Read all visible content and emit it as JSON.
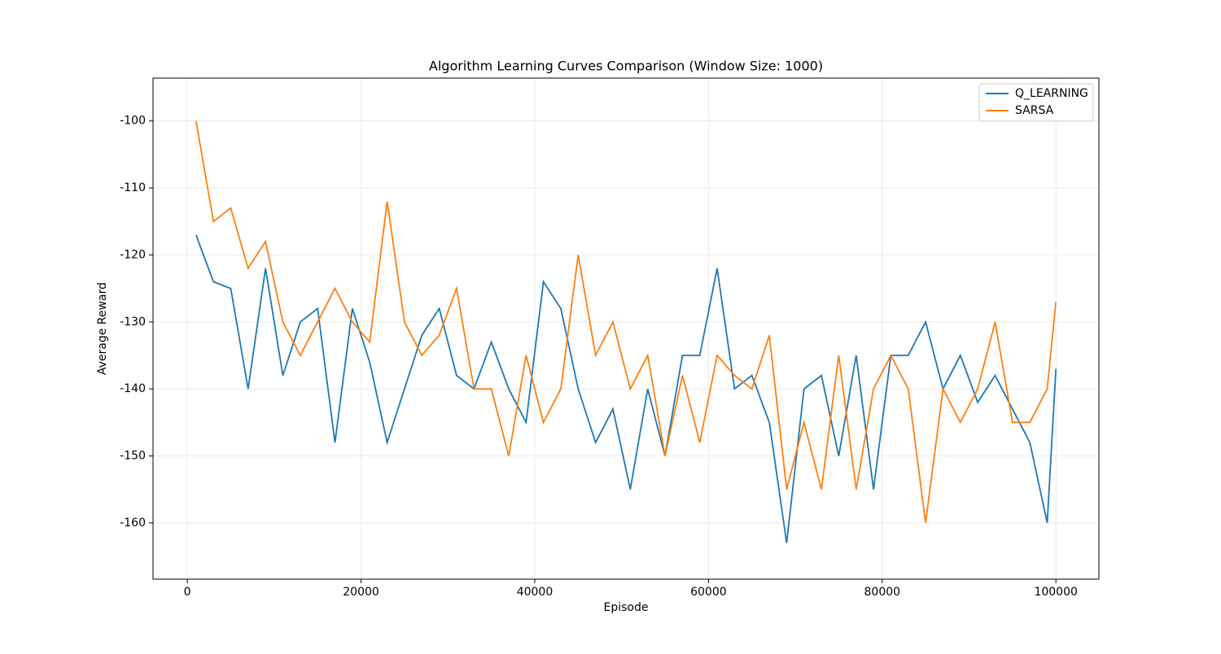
{
  "chart_data": {
    "type": "line",
    "title": "Algorithm Learning Curves Comparison (Window Size: 1000)",
    "x_label": "Episode",
    "y_label": "Average Reward",
    "x": [
      1000,
      3000,
      5000,
      7000,
      9000,
      11000,
      13000,
      15000,
      17000,
      19000,
      21000,
      23000,
      25000,
      27000,
      29000,
      31000,
      33000,
      35000,
      37000,
      39000,
      41000,
      43000,
      45000,
      47000,
      49000,
      51000,
      53000,
      55000,
      57000,
      59000,
      61000,
      63000,
      65000,
      67000,
      69000,
      71000,
      73000,
      75000,
      77000,
      79000,
      81000,
      83000,
      85000,
      87000,
      89000,
      91000,
      93000,
      95000,
      97000,
      99000,
      100000
    ],
    "series": [
      {
        "name": "Q_LEARNING",
        "color": "#1f77b4",
        "values": [
          -117,
          -124,
          -125,
          -140,
          -122,
          -138,
          -130,
          -128,
          -148,
          -128,
          -136,
          -148,
          -140,
          -132,
          -128,
          -138,
          -140,
          -133,
          -140,
          -145,
          -124,
          -128,
          -140,
          -148,
          -143,
          -155,
          -140,
          -150,
          -135,
          -135,
          -122,
          -140,
          -138,
          -145,
          -163,
          -140,
          -138,
          -150,
          -135,
          -155,
          -135,
          -135,
          -130,
          -140,
          -135,
          -142,
          -138,
          -143,
          -148,
          -160,
          -137
        ]
      },
      {
        "name": "SARSA",
        "color": "#ff7f0e",
        "values": [
          -100,
          -115,
          -113,
          -122,
          -118,
          -130,
          -135,
          -130,
          -125,
          -130,
          -133,
          -112,
          -130,
          -135,
          -132,
          -125,
          -140,
          -140,
          -150,
          -135,
          -145,
          -140,
          -120,
          -135,
          -130,
          -140,
          -135,
          -150,
          -138,
          -148,
          -135,
          -138,
          -140,
          -132,
          -155,
          -145,
          -155,
          -135,
          -155,
          -140,
          -135,
          -140,
          -160,
          -140,
          -145,
          -140,
          -130,
          -145,
          -145,
          -140,
          -127
        ]
      }
    ],
    "xlim": [
      -3950,
      104950
    ],
    "ylim": [
      -168.4,
      -93.6
    ],
    "xticks": [
      0,
      20000,
      40000,
      60000,
      80000,
      100000
    ],
    "yticks": [
      -160,
      -150,
      -140,
      -130,
      -120,
      -110,
      -100
    ],
    "grid": true,
    "legend": "upper right"
  }
}
